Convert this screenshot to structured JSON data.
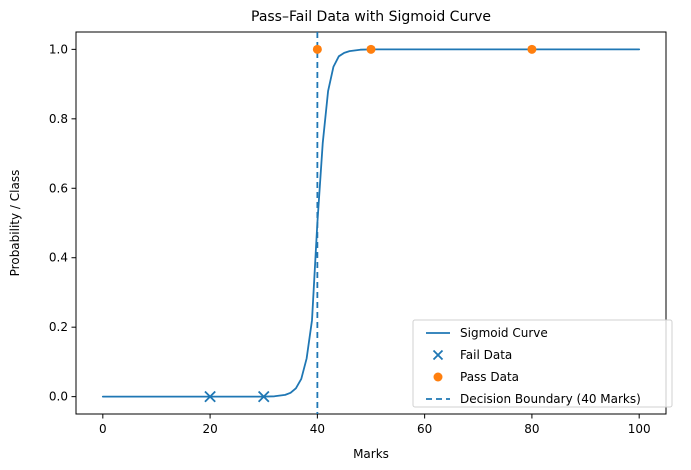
{
  "chart_data": {
    "type": "line",
    "title": "Pass–Fail Data with Sigmoid Curve",
    "xlabel": "Marks",
    "ylabel": "Probability / Class",
    "xlim": [
      -5,
      105
    ],
    "ylim": [
      -0.05,
      1.05
    ],
    "x_ticks": [
      0,
      20,
      40,
      60,
      80,
      100
    ],
    "y_ticks": [
      0.0,
      0.2,
      0.4,
      0.6,
      0.8,
      1.0
    ],
    "x_tick_labels": [
      "0",
      "20",
      "40",
      "60",
      "80",
      "100"
    ],
    "y_tick_labels": [
      "0.0",
      "0.2",
      "0.4",
      "0.6",
      "0.8",
      "1.0"
    ],
    "grid": false,
    "legend_position": "bottom-right",
    "series": [
      {
        "name": "Sigmoid Curve",
        "type": "line",
        "color": "#1f77b4",
        "x": [
          0,
          5,
          10,
          15,
          20,
          25,
          30,
          32,
          34,
          35,
          36,
          37,
          38,
          39,
          40,
          41,
          42,
          43,
          44,
          45,
          46,
          48,
          50,
          55,
          60,
          70,
          80,
          90,
          100
        ],
        "y": [
          0.0,
          0.0,
          0.0,
          0.0,
          0.0,
          0.0,
          0.0,
          0.001,
          0.005,
          0.011,
          0.024,
          0.051,
          0.11,
          0.22,
          0.5,
          0.73,
          0.88,
          0.95,
          0.98,
          0.99,
          0.995,
          0.999,
          1.0,
          1.0,
          1.0,
          1.0,
          1.0,
          1.0,
          1.0
        ]
      },
      {
        "name": "Fail Data",
        "type": "scatter",
        "marker": "x",
        "color": "#1f77b4",
        "x": [
          20,
          30
        ],
        "y": [
          0,
          0
        ]
      },
      {
        "name": "Pass Data",
        "type": "scatter",
        "marker": "circle",
        "color": "#ff7f0e",
        "x": [
          40,
          50,
          80
        ],
        "y": [
          1,
          1,
          1
        ]
      },
      {
        "name": "Decision Boundary (40 Marks)",
        "type": "vline",
        "style": "dashed",
        "color": "#1f77b4",
        "x": 40
      }
    ]
  }
}
